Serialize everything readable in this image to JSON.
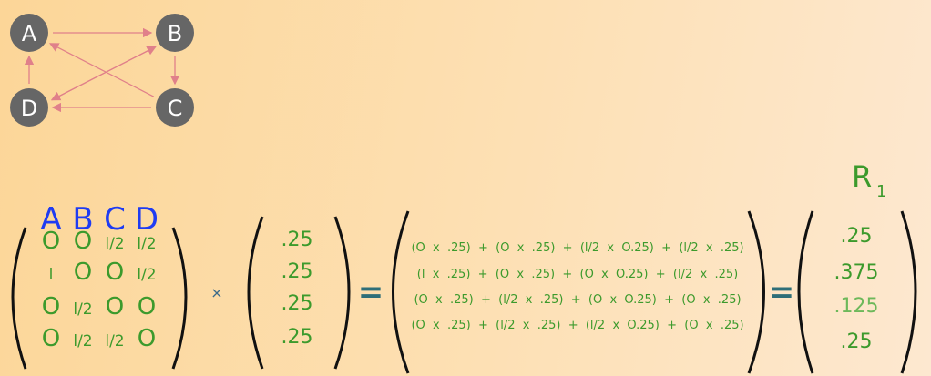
{
  "graph": {
    "nodes": [
      {
        "id": "A",
        "label": "A"
      },
      {
        "id": "B",
        "label": "B"
      },
      {
        "id": "C",
        "label": "C"
      },
      {
        "id": "D",
        "label": "D"
      }
    ],
    "edges": [
      [
        "A",
        "B"
      ],
      [
        "B",
        "C"
      ],
      [
        "C",
        "D"
      ],
      [
        "D",
        "A"
      ],
      [
        "C",
        "A"
      ],
      [
        "B",
        "D"
      ],
      [
        "D",
        "B"
      ]
    ],
    "node_color": "#666666",
    "edge_color": "#e0808a"
  },
  "matrix": {
    "headers": [
      "A",
      "B",
      "C",
      "D"
    ],
    "rows": [
      [
        "O",
        "O",
        "l/2",
        "l/2"
      ],
      [
        "l",
        "O",
        "O",
        "l/2"
      ],
      [
        "O",
        "l/2",
        "O",
        "O"
      ],
      [
        "O",
        "l/2",
        "l/2",
        "O"
      ]
    ]
  },
  "times_sign": "×",
  "vector": [
    ".25",
    ".25",
    ".25",
    ".25"
  ],
  "equals_sign": "=",
  "expansion": [
    "(O  x  .25)  +  (O  x  .25)  +  (l/2  x  O.25)  +  (l/2  x  .25)",
    "(l  x  .25)  +  (O  x  .25)  +  (O  x  O.25)  +  (l/2  x  .25)",
    "(O  x  .25)  +  (l/2  x  .25)  +  (O  x  O.25)  +  (O  x  .25)",
    "(O  x  .25)  +  (l/2  x  .25)  +  (l/2  x  O.25)  +  (O  x  .25)"
  ],
  "result": {
    "label": "R",
    "subscript": "1",
    "values": [
      ".25",
      ".375",
      ".125",
      ".25"
    ]
  },
  "colors": {
    "green": "#3c9a2c",
    "blue": "#1f3cf2",
    "equals": "#2e6e78"
  }
}
